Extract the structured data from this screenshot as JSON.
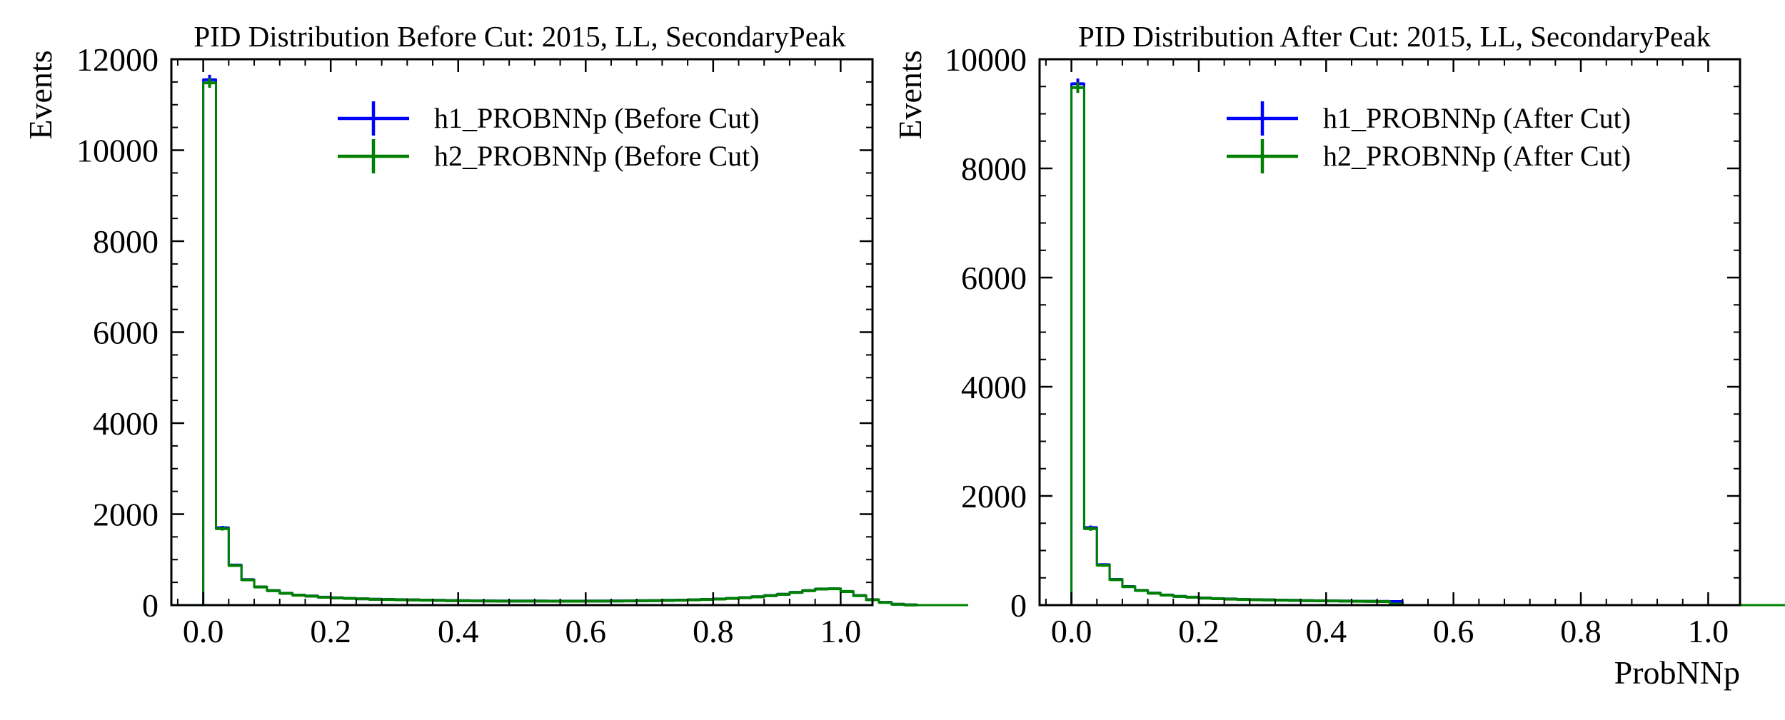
{
  "chart_data": [
    {
      "type": "histogram",
      "title": "PID Distribution Before Cut: 2015, LL, SecondaryPeak",
      "xlabel": "",
      "ylabel": "Events",
      "xlim": [
        -0.05,
        1.05
      ],
      "ylim": [
        0,
        12000
      ],
      "xticks": [
        0.0,
        0.2,
        0.4,
        0.6,
        0.8,
        1.0
      ],
      "xtick_labels": [
        "0.0",
        "0.2",
        "0.4",
        "0.6",
        "0.8",
        "1.0"
      ],
      "yticks": [
        0,
        2000,
        4000,
        6000,
        8000,
        10000,
        12000
      ],
      "ytick_labels": [
        "0",
        "2000",
        "4000",
        "6000",
        "8000",
        "10000",
        "12000"
      ],
      "bin_width": 0.02,
      "legend_position": "top-right",
      "series": [
        {
          "name": "h1_PROBNNp (Before Cut)",
          "color": "#0000ff",
          "values": [
            11550,
            1700,
            880,
            560,
            400,
            320,
            260,
            220,
            200,
            175,
            160,
            150,
            140,
            130,
            125,
            120,
            115,
            110,
            105,
            100,
            98,
            95,
            93,
            90,
            90,
            90,
            90,
            88,
            88,
            88,
            90,
            90,
            92,
            95,
            98,
            100,
            105,
            110,
            118,
            125,
            135,
            150,
            165,
            185,
            210,
            240,
            280,
            320,
            355,
            360,
            300,
            210,
            120,
            60,
            20,
            5,
            0,
            0,
            0,
            0
          ]
        },
        {
          "name": "h2_PROBNNp (Before Cut)",
          "color": "#008000",
          "values": [
            11480,
            1680,
            870,
            555,
            398,
            318,
            258,
            218,
            198,
            173,
            158,
            148,
            138,
            128,
            123,
            118,
            113,
            108,
            103,
            98,
            96,
            93,
            91,
            88,
            88,
            88,
            88,
            86,
            86,
            86,
            88,
            88,
            90,
            93,
            96,
            98,
            103,
            108,
            116,
            123,
            133,
            148,
            163,
            183,
            208,
            238,
            278,
            318,
            352,
            358,
            298,
            208,
            118,
            58,
            18,
            4,
            0,
            0,
            0,
            0
          ]
        }
      ]
    },
    {
      "type": "histogram",
      "title": "PID Distribution After Cut: 2015, LL, SecondaryPeak",
      "xlabel": "ProbNNp",
      "ylabel": "Events",
      "xlim": [
        -0.05,
        1.05
      ],
      "ylim": [
        0,
        10000
      ],
      "xticks": [
        0.0,
        0.2,
        0.4,
        0.6,
        0.8,
        1.0
      ],
      "xtick_labels": [
        "0.0",
        "0.2",
        "0.4",
        "0.6",
        "0.8",
        "1.0"
      ],
      "yticks": [
        0,
        2000,
        4000,
        6000,
        8000,
        10000
      ],
      "ytick_labels": [
        "0",
        "2000",
        "4000",
        "6000",
        "8000",
        "10000"
      ],
      "bin_width": 0.02,
      "legend_position": "top-right",
      "series": [
        {
          "name": "h1_PROBNNp (After Cut)",
          "color": "#0000ff",
          "values": [
            9550,
            1420,
            740,
            470,
            340,
            270,
            220,
            185,
            160,
            145,
            130,
            120,
            112,
            105,
            100,
            96,
            92,
            88,
            84,
            80,
            78,
            75,
            72,
            70,
            68,
            66,
            0,
            0,
            0,
            0,
            0,
            0,
            0,
            0,
            0,
            0,
            0,
            0,
            0,
            0,
            0,
            0,
            0,
            0,
            0,
            0,
            0,
            0,
            0,
            0,
            0,
            0,
            0,
            0,
            0,
            0,
            0,
            0,
            0,
            0
          ]
        },
        {
          "name": "h2_PROBNNp (After Cut)",
          "color": "#008000",
          "values": [
            9480,
            1400,
            730,
            465,
            337,
            268,
            218,
            183,
            158,
            143,
            128,
            118,
            110,
            103,
            98,
            94,
            90,
            86,
            82,
            78,
            76,
            73,
            70,
            68,
            66,
            20,
            0,
            0,
            0,
            0,
            0,
            0,
            0,
            0,
            0,
            0,
            0,
            0,
            0,
            0,
            0,
            0,
            0,
            0,
            0,
            0,
            0,
            0,
            0,
            0,
            0,
            0,
            0,
            0,
            0,
            0,
            0,
            0,
            0,
            0
          ]
        }
      ]
    }
  ]
}
